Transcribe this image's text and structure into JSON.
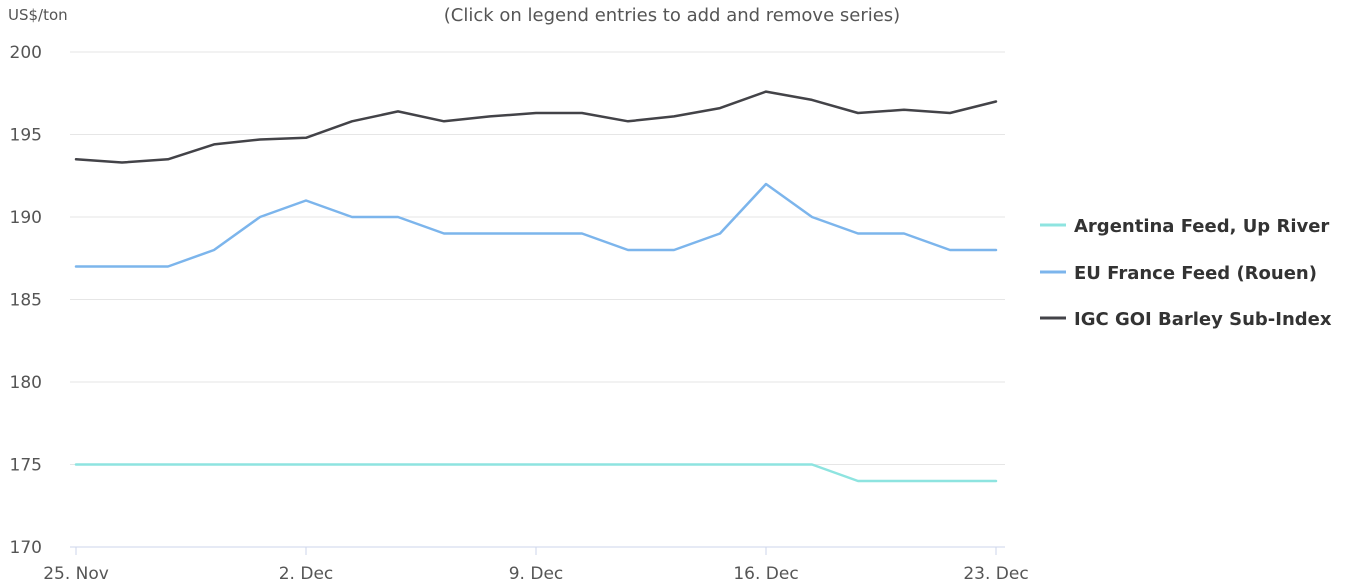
{
  "chart_data": {
    "type": "line",
    "subtitle": "(Click on legend entries to add and remove series)",
    "ylabel": "US$/ton",
    "ylim": [
      170,
      200
    ],
    "yticks": [
      170,
      175,
      180,
      185,
      190,
      195,
      200
    ],
    "x": [
      "25 Nov",
      "26 Nov",
      "27 Nov",
      "28 Nov",
      "29 Nov",
      "2 Dec",
      "3 Dec",
      "4 Dec",
      "5 Dec",
      "6 Dec",
      "9 Dec",
      "10 Dec",
      "11 Dec",
      "12 Dec",
      "13 Dec",
      "16 Dec",
      "17 Dec",
      "18 Dec",
      "19 Dec",
      "20 Dec",
      "23 Dec"
    ],
    "xticks": [
      {
        "label": "25. Nov",
        "date": "25 Nov"
      },
      {
        "label": "2. Dec",
        "date": "2 Dec"
      },
      {
        "label": "9. Dec",
        "date": "9 Dec"
      },
      {
        "label": "16. Dec",
        "date": "16 Dec"
      },
      {
        "label": "23. Dec",
        "date": "23 Dec"
      }
    ],
    "grid": true,
    "legend_position": "right",
    "series": [
      {
        "name": "Argentina Feed, Up River",
        "color": "#8ee4e0",
        "values": [
          175,
          175,
          175,
          175,
          175,
          175,
          175,
          175,
          175,
          175,
          175,
          175,
          175,
          175,
          175,
          175,
          175,
          174,
          174,
          174,
          174
        ]
      },
      {
        "name": "EU France Feed (Rouen)",
        "color": "#7cb5ec",
        "values": [
          187,
          187,
          187,
          188,
          190,
          191,
          190,
          190,
          189,
          189,
          189,
          189,
          188,
          188,
          189,
          192,
          190,
          189,
          189,
          188,
          188
        ]
      },
      {
        "name": "IGC GOI Barley Sub-Index",
        "color": "#434348",
        "values": [
          193.5,
          193.3,
          193.5,
          194.4,
          194.7,
          194.8,
          195.8,
          196.4,
          195.8,
          196.1,
          196.3,
          196.3,
          195.8,
          196.1,
          196.6,
          197.6,
          197.1,
          196.3,
          196.5,
          196.3,
          197.0
        ]
      }
    ]
  }
}
